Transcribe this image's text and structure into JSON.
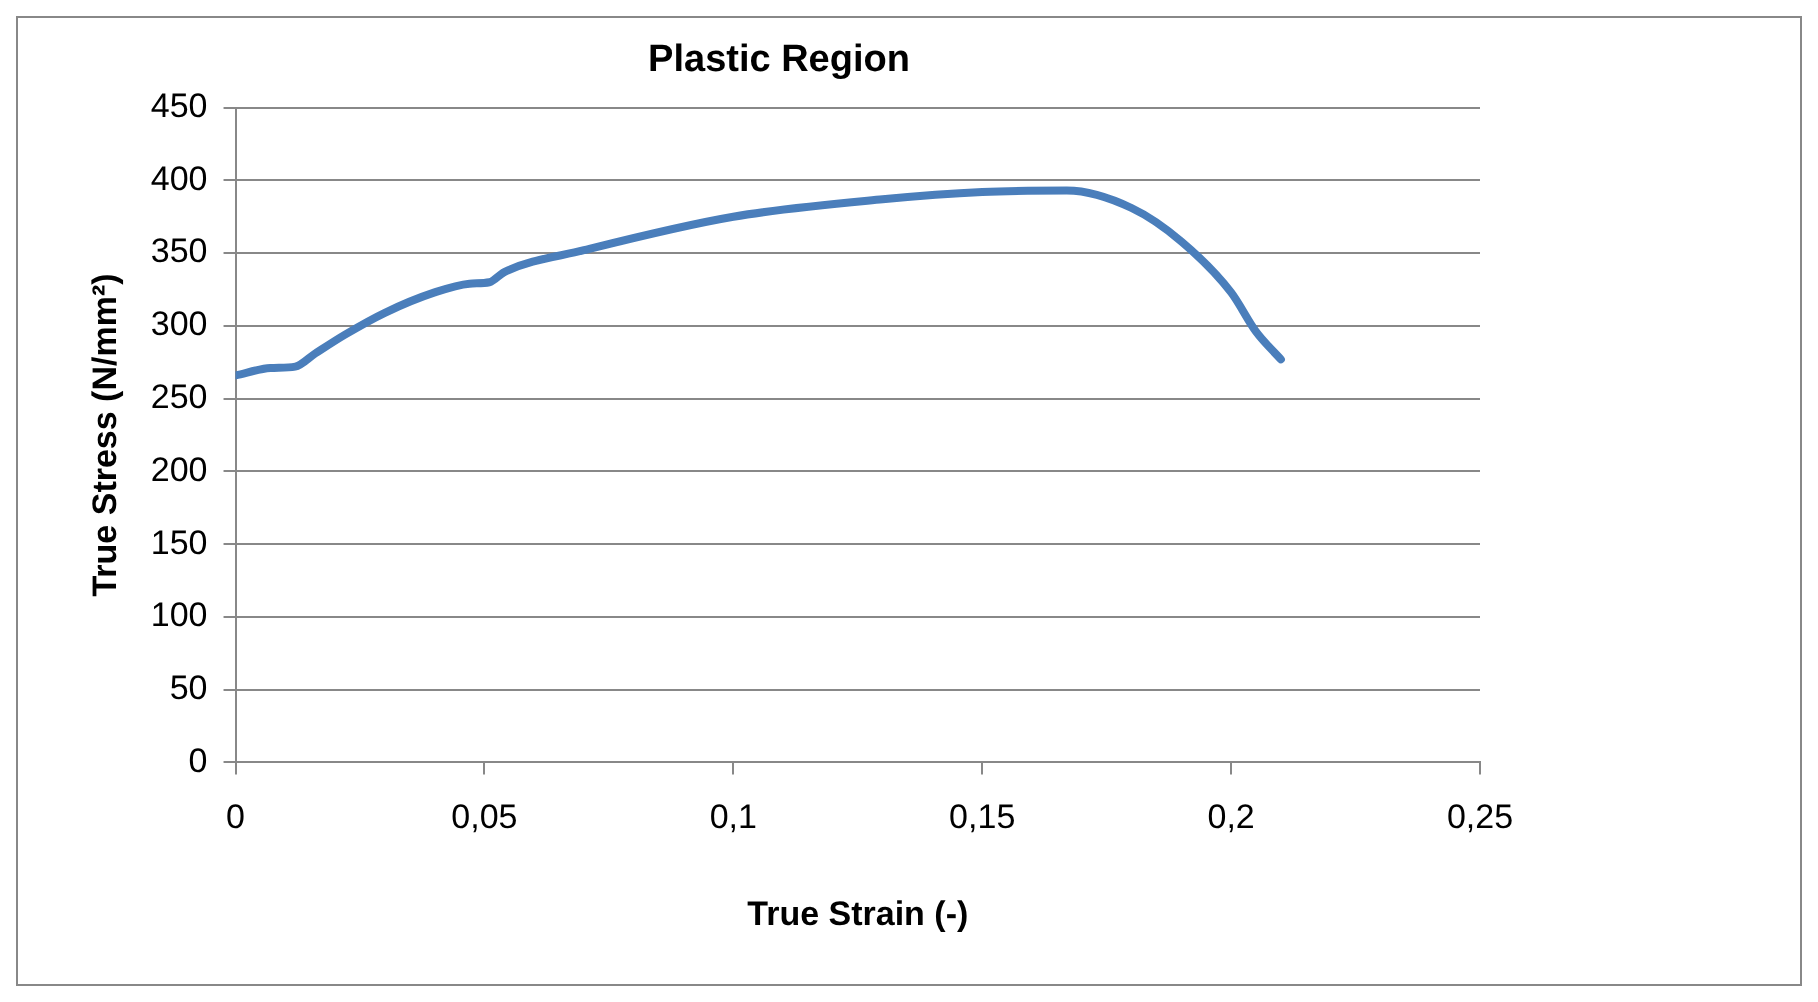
{
  "chart_data": {
    "type": "line",
    "title": "Plastic Region",
    "xlabel": "True Strain (-)",
    "ylabel": "True Stress (N/mm²)",
    "series": [
      {
        "color": "#4a7ebb",
        "x": [
          0,
          0.007,
          0.012,
          0.016,
          0.022,
          0.03,
          0.04,
          0.047,
          0.051,
          0.054,
          0.07,
          0.1,
          0.13,
          0.15,
          0.167,
          0.18,
          0.19,
          0.2,
          0.205,
          0.21
        ],
        "values": [
          266,
          271,
          272,
          281,
          294,
          309,
          323,
          329,
          330,
          337,
          352,
          375,
          387,
          392,
          393,
          381,
          358,
          323,
          296,
          277
        ]
      }
    ],
    "xlim": [
      0,
      0.25
    ],
    "xticks": [
      {
        "value": 0,
        "label": "0"
      },
      {
        "value": 0.05,
        "label": "0,05"
      },
      {
        "value": 0.1,
        "label": "0,1"
      },
      {
        "value": 0.15,
        "label": "0,15"
      },
      {
        "value": 0.2,
        "label": "0,2"
      },
      {
        "value": 0.25,
        "label": "0,25"
      }
    ],
    "ylim": [
      0,
      450
    ],
    "yticks": [
      0,
      50,
      100,
      150,
      200,
      250,
      300,
      350,
      400,
      450
    ],
    "grid": "y",
    "marker": "none",
    "line_style": "solid",
    "legend": false
  }
}
